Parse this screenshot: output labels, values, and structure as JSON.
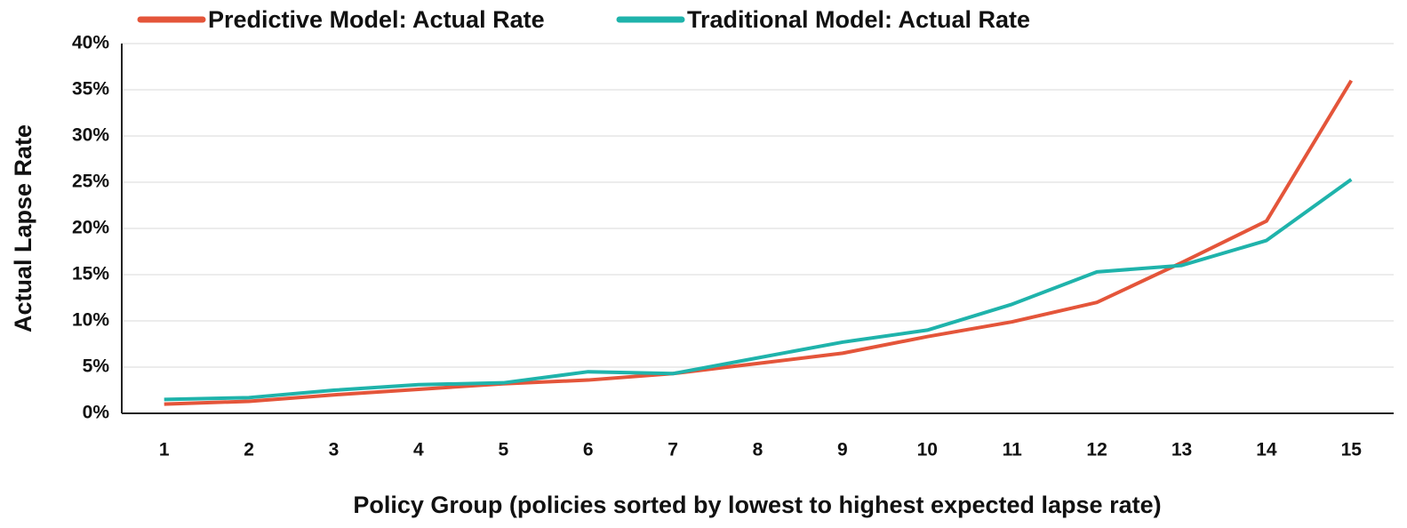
{
  "chart_data": {
    "type": "line",
    "xlabel": "Policy Group (policies sorted by lowest to highest expected lapse rate)",
    "ylabel": "Actual Lapse Rate",
    "categories": [
      "1",
      "2",
      "3",
      "4",
      "5",
      "6",
      "7",
      "8",
      "9",
      "10",
      "11",
      "12",
      "13",
      "14",
      "15"
    ],
    "series": [
      {
        "name": "Predictive Model: Actual Rate",
        "color": "#e4553a",
        "values": [
          1.0,
          1.3,
          2.0,
          2.6,
          3.2,
          3.6,
          4.3,
          5.4,
          6.5,
          8.3,
          9.9,
          12.0,
          16.3,
          20.8,
          36.0
        ]
      },
      {
        "name": "Traditional Model: Actual Rate",
        "color": "#1fb3ab",
        "values": [
          1.5,
          1.7,
          2.5,
          3.1,
          3.3,
          4.5,
          4.3,
          6.0,
          7.7,
          9.0,
          11.8,
          15.3,
          16.0,
          18.7,
          25.3
        ]
      }
    ],
    "ylim": [
      0,
      40
    ],
    "yticks": [
      {
        "value": 0,
        "label": "0%"
      },
      {
        "value": 5,
        "label": "5%"
      },
      {
        "value": 10,
        "label": "10%"
      },
      {
        "value": 15,
        "label": "15%"
      },
      {
        "value": 20,
        "label": "20%"
      },
      {
        "value": 25,
        "label": "25%"
      },
      {
        "value": 30,
        "label": "30%"
      },
      {
        "value": 35,
        "label": "35%"
      },
      {
        "value": 40,
        "label": "40%"
      }
    ],
    "grid": true,
    "legend": "top"
  }
}
